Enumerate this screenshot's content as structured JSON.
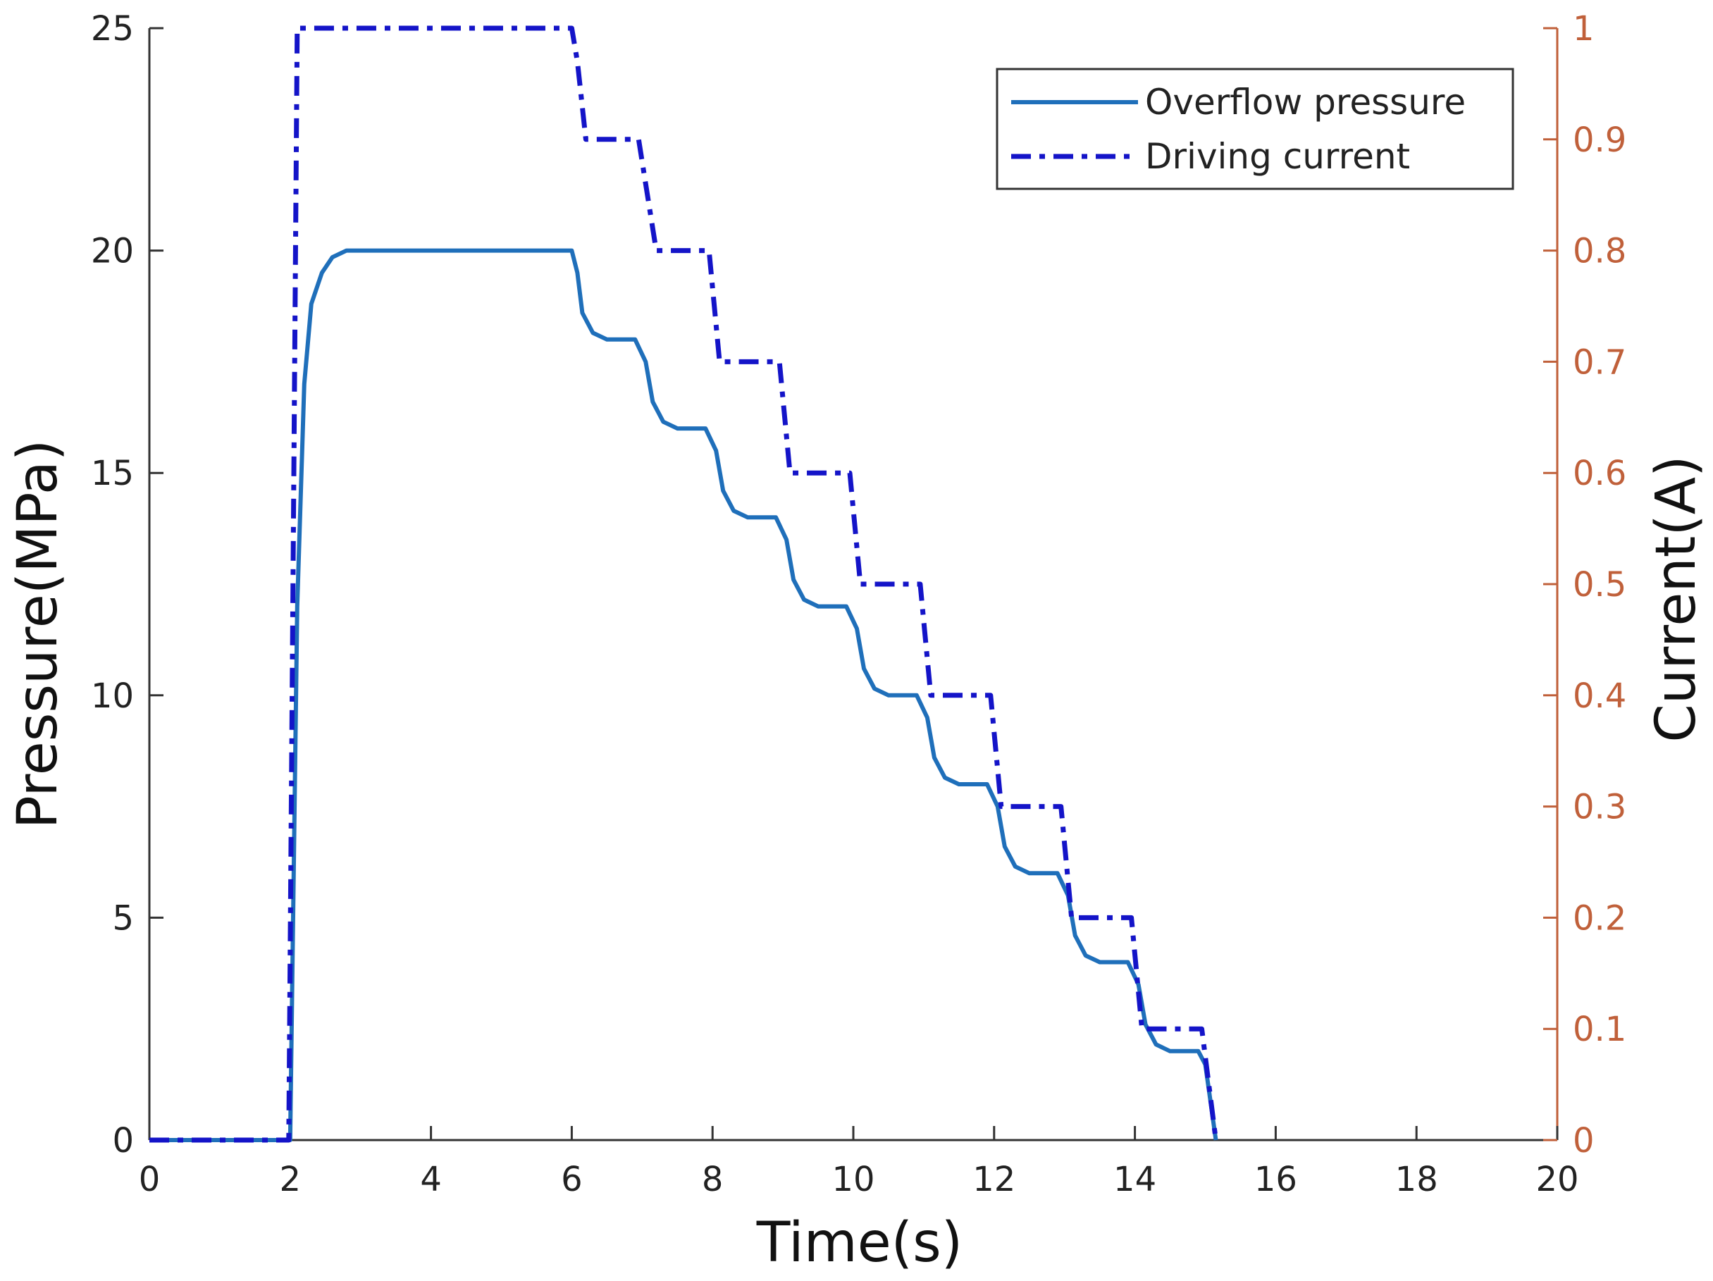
{
  "chart_data": {
    "type": "line",
    "title": "",
    "xlabel": "Time(s)",
    "ylabel": "Pressure(MPa)",
    "y2label": "Current(A)",
    "xlim": [
      0,
      20
    ],
    "ylim": [
      0,
      25
    ],
    "y2lim": [
      0,
      1
    ],
    "xticks": [
      0,
      2,
      4,
      6,
      8,
      10,
      12,
      14,
      16,
      18,
      20
    ],
    "xtick_labels": [
      "0",
      "2",
      "4",
      "6",
      "8",
      "10",
      "12",
      "14",
      "16",
      "18",
      "20"
    ],
    "yticks": [
      0,
      5,
      10,
      15,
      20,
      25
    ],
    "ytick_labels": [
      "0",
      "5",
      "10",
      "15",
      "20",
      "25"
    ],
    "y2ticks": [
      0,
      0.1,
      0.2,
      0.3,
      0.4,
      0.5,
      0.6,
      0.7,
      0.8,
      0.9,
      1
    ],
    "y2tick_labels": [
      "0",
      "0.1",
      "0.2",
      "0.3",
      "0.4",
      "0.5",
      "0.6",
      "0.7",
      "0.8",
      "0.9",
      "1"
    ],
    "grid": false,
    "legend_position": "top-right",
    "series": [
      {
        "name": "Overflow pressure",
        "axis": "left",
        "style": "solid",
        "color": "#1f6fba",
        "x": [
          0,
          2.0,
          2.1,
          2.2,
          2.3,
          2.45,
          2.6,
          2.8,
          3.0,
          6.0,
          6.08,
          6.15,
          6.3,
          6.5,
          6.9,
          7.05,
          7.15,
          7.3,
          7.5,
          7.9,
          8.05,
          8.15,
          8.3,
          8.5,
          8.9,
          9.05,
          9.15,
          9.3,
          9.5,
          9.9,
          10.05,
          10.15,
          10.3,
          10.5,
          10.9,
          11.05,
          11.15,
          11.3,
          11.5,
          11.9,
          12.05,
          12.15,
          12.3,
          12.5,
          12.9,
          13.05,
          13.15,
          13.3,
          13.5,
          13.9,
          14.05,
          14.15,
          14.3,
          14.5,
          14.9,
          15.0,
          15.08,
          15.15
        ],
        "values": [
          0,
          0,
          12,
          17,
          18.8,
          19.5,
          19.85,
          20,
          20,
          20,
          19.5,
          18.6,
          18.15,
          18,
          18,
          17.5,
          16.6,
          16.15,
          16,
          16,
          15.5,
          14.6,
          14.15,
          14,
          14,
          13.5,
          12.6,
          12.15,
          12,
          12,
          11.5,
          10.6,
          10.15,
          10,
          10,
          9.5,
          8.6,
          8.15,
          8,
          8,
          7.5,
          6.6,
          6.15,
          6,
          6,
          5.5,
          4.6,
          4.15,
          4,
          4,
          3.5,
          2.6,
          2.15,
          2,
          2,
          1.7,
          0.8,
          0
        ]
      },
      {
        "name": "Driving current",
        "axis": "right",
        "style": "dash-dot",
        "color": "#1414c8",
        "x": [
          0,
          1.98,
          2.1,
          6.0,
          6.08,
          6.2,
          6.95,
          7.2,
          7.95,
          8.1,
          8.95,
          9.1,
          9.95,
          10.1,
          10.95,
          11.1,
          11.95,
          12.1,
          12.95,
          13.1,
          13.95,
          14.1,
          14.95,
          15.15
        ],
        "values": [
          0,
          0,
          1,
          1,
          0.97,
          0.9,
          0.9,
          0.8,
          0.8,
          0.7,
          0.7,
          0.6,
          0.6,
          0.5,
          0.5,
          0.4,
          0.4,
          0.3,
          0.3,
          0.2,
          0.2,
          0.1,
          0.1,
          0
        ]
      }
    ]
  }
}
